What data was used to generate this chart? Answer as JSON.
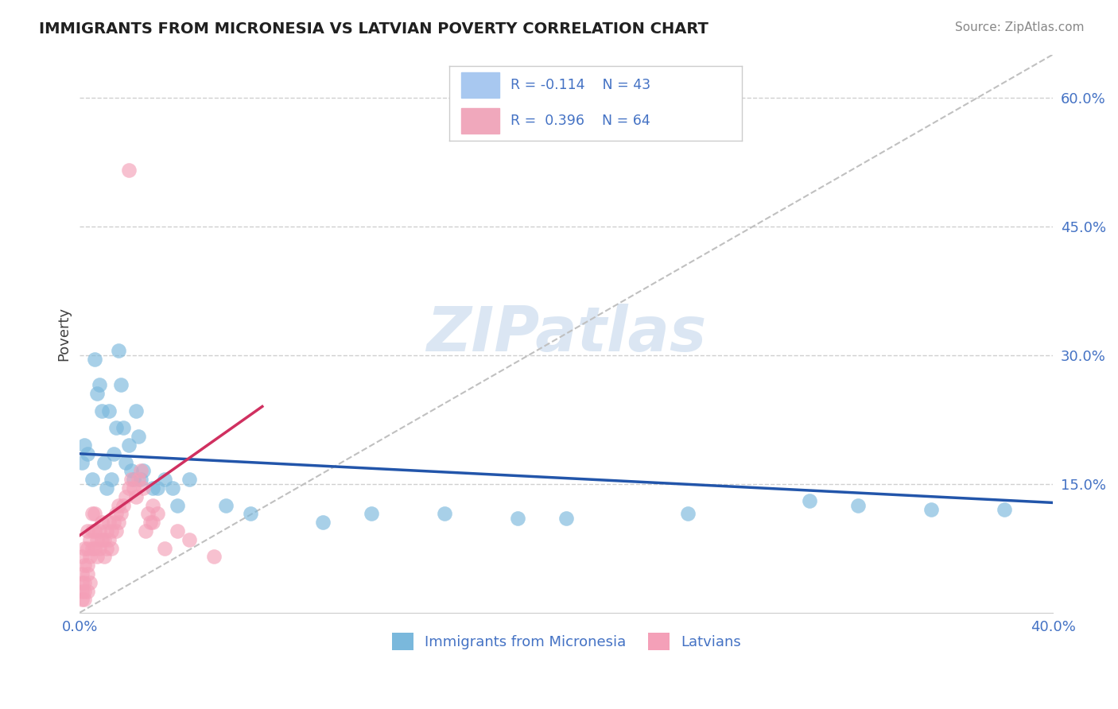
{
  "title": "IMMIGRANTS FROM MICRONESIA VS LATVIAN POVERTY CORRELATION CHART",
  "source": "Source: ZipAtlas.com",
  "ylabel": "Poverty",
  "y_ticks_right": [
    0.15,
    0.3,
    0.45,
    0.6
  ],
  "y_tick_labels_right": [
    "15.0%",
    "30.0%",
    "45.0%",
    "60.0%"
  ],
  "xmin": 0.0,
  "xmax": 0.4,
  "ymin": 0.0,
  "ymax": 0.65,
  "legend_labels_bottom": [
    "Immigrants from Micronesia",
    "Latvians"
  ],
  "blue_color": "#7ab8dc",
  "pink_color": "#f4a0b8",
  "blue_line_color": "#2255aa",
  "pink_line_color": "#d03060",
  "watermark": "ZIPatlas",
  "blue_scatter": [
    [
      0.001,
      0.175
    ],
    [
      0.002,
      0.195
    ],
    [
      0.003,
      0.185
    ],
    [
      0.005,
      0.155
    ],
    [
      0.006,
      0.295
    ],
    [
      0.007,
      0.255
    ],
    [
      0.008,
      0.265
    ],
    [
      0.009,
      0.235
    ],
    [
      0.01,
      0.175
    ],
    [
      0.011,
      0.145
    ],
    [
      0.012,
      0.235
    ],
    [
      0.013,
      0.155
    ],
    [
      0.014,
      0.185
    ],
    [
      0.015,
      0.215
    ],
    [
      0.016,
      0.305
    ],
    [
      0.017,
      0.265
    ],
    [
      0.018,
      0.215
    ],
    [
      0.019,
      0.175
    ],
    [
      0.02,
      0.195
    ],
    [
      0.021,
      0.165
    ],
    [
      0.022,
      0.155
    ],
    [
      0.023,
      0.235
    ],
    [
      0.024,
      0.205
    ],
    [
      0.025,
      0.155
    ],
    [
      0.026,
      0.165
    ],
    [
      0.03,
      0.145
    ],
    [
      0.032,
      0.145
    ],
    [
      0.035,
      0.155
    ],
    [
      0.038,
      0.145
    ],
    [
      0.04,
      0.125
    ],
    [
      0.045,
      0.155
    ],
    [
      0.06,
      0.125
    ],
    [
      0.07,
      0.115
    ],
    [
      0.1,
      0.105
    ],
    [
      0.12,
      0.115
    ],
    [
      0.15,
      0.115
    ],
    [
      0.18,
      0.11
    ],
    [
      0.2,
      0.11
    ],
    [
      0.25,
      0.115
    ],
    [
      0.3,
      0.13
    ],
    [
      0.32,
      0.125
    ],
    [
      0.35,
      0.12
    ],
    [
      0.38,
      0.12
    ]
  ],
  "pink_scatter": [
    [
      0.001,
      0.045
    ],
    [
      0.001,
      0.065
    ],
    [
      0.001,
      0.025
    ],
    [
      0.001,
      0.015
    ],
    [
      0.001,
      0.035
    ],
    [
      0.002,
      0.055
    ],
    [
      0.002,
      0.075
    ],
    [
      0.002,
      0.025
    ],
    [
      0.002,
      0.015
    ],
    [
      0.002,
      0.035
    ],
    [
      0.003,
      0.075
    ],
    [
      0.003,
      0.055
    ],
    [
      0.003,
      0.095
    ],
    [
      0.003,
      0.045
    ],
    [
      0.003,
      0.025
    ],
    [
      0.004,
      0.065
    ],
    [
      0.004,
      0.085
    ],
    [
      0.004,
      0.035
    ],
    [
      0.005,
      0.095
    ],
    [
      0.005,
      0.075
    ],
    [
      0.005,
      0.115
    ],
    [
      0.006,
      0.095
    ],
    [
      0.006,
      0.075
    ],
    [
      0.006,
      0.115
    ],
    [
      0.007,
      0.085
    ],
    [
      0.007,
      0.065
    ],
    [
      0.008,
      0.095
    ],
    [
      0.008,
      0.075
    ],
    [
      0.009,
      0.105
    ],
    [
      0.009,
      0.085
    ],
    [
      0.01,
      0.085
    ],
    [
      0.01,
      0.065
    ],
    [
      0.011,
      0.095
    ],
    [
      0.011,
      0.075
    ],
    [
      0.012,
      0.085
    ],
    [
      0.012,
      0.105
    ],
    [
      0.013,
      0.095
    ],
    [
      0.013,
      0.075
    ],
    [
      0.014,
      0.105
    ],
    [
      0.015,
      0.115
    ],
    [
      0.015,
      0.095
    ],
    [
      0.016,
      0.125
    ],
    [
      0.016,
      0.105
    ],
    [
      0.017,
      0.115
    ],
    [
      0.018,
      0.125
    ],
    [
      0.019,
      0.135
    ],
    [
      0.02,
      0.145
    ],
    [
      0.021,
      0.155
    ],
    [
      0.022,
      0.145
    ],
    [
      0.023,
      0.135
    ],
    [
      0.024,
      0.155
    ],
    [
      0.025,
      0.165
    ],
    [
      0.026,
      0.145
    ],
    [
      0.027,
      0.095
    ],
    [
      0.028,
      0.115
    ],
    [
      0.029,
      0.105
    ],
    [
      0.03,
      0.125
    ],
    [
      0.03,
      0.105
    ],
    [
      0.032,
      0.115
    ],
    [
      0.035,
      0.075
    ],
    [
      0.04,
      0.095
    ],
    [
      0.045,
      0.085
    ],
    [
      0.055,
      0.065
    ],
    [
      0.02,
      0.515
    ]
  ],
  "blue_trend": [
    0.0,
    0.185,
    0.4,
    0.128
  ],
  "pink_trend": [
    0.0,
    0.09,
    0.075,
    0.24
  ],
  "diag_line": [
    0.0,
    0.0,
    0.4,
    0.65
  ]
}
